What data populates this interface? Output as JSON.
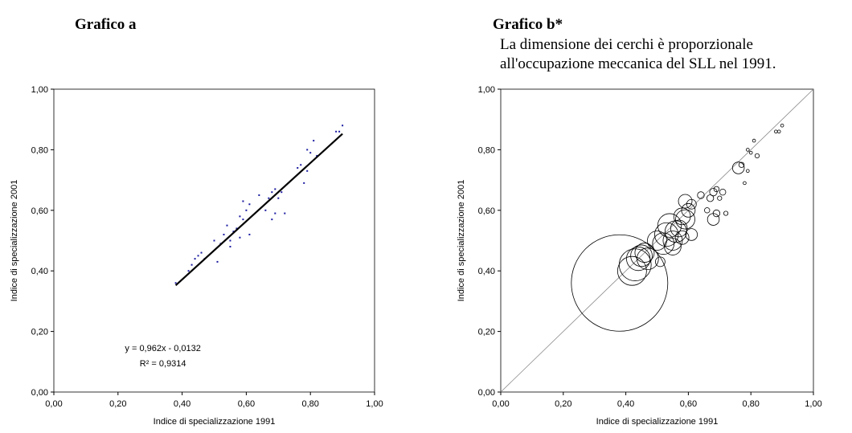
{
  "chart_data": [
    {
      "type": "scatter",
      "title": "Grafico a",
      "xlabel": "Indice di specializzazione 1991",
      "ylabel": "Indice di specializzazione 2001",
      "xlim": [
        0,
        1
      ],
      "ylim": [
        0,
        1
      ],
      "xticks": [
        {
          "value": 0,
          "label": "0,00"
        },
        {
          "value": 0.2,
          "label": "0,20"
        },
        {
          "value": 0.4,
          "label": "0,40"
        },
        {
          "value": 0.6,
          "label": "0,60"
        },
        {
          "value": 0.8,
          "label": "0,80"
        },
        {
          "value": 1,
          "label": "1,00"
        }
      ],
      "yticks": [
        {
          "value": 0,
          "label": "0,00"
        },
        {
          "value": 0.2,
          "label": "0,20"
        },
        {
          "value": 0.4,
          "label": "0,40"
        },
        {
          "value": 0.6,
          "label": "0,60"
        },
        {
          "value": 0.8,
          "label": "0,80"
        },
        {
          "value": 1,
          "label": "1,00"
        }
      ],
      "color": "#1a1aa0",
      "x": [
        0.38,
        0.42,
        0.43,
        0.44,
        0.45,
        0.46,
        0.47,
        0.5,
        0.51,
        0.52,
        0.53,
        0.54,
        0.55,
        0.55,
        0.56,
        0.57,
        0.58,
        0.58,
        0.59,
        0.59,
        0.6,
        0.61,
        0.61,
        0.64,
        0.66,
        0.67,
        0.68,
        0.68,
        0.69,
        0.69,
        0.7,
        0.71,
        0.72,
        0.76,
        0.77,
        0.78,
        0.79,
        0.79,
        0.8,
        0.81,
        0.82,
        0.88,
        0.89,
        0.9
      ],
      "y": [
        0.36,
        0.4,
        0.42,
        0.44,
        0.45,
        0.46,
        0.44,
        0.5,
        0.43,
        0.49,
        0.52,
        0.55,
        0.5,
        0.48,
        0.53,
        0.54,
        0.51,
        0.58,
        0.57,
        0.63,
        0.6,
        0.52,
        0.62,
        0.65,
        0.6,
        0.64,
        0.66,
        0.57,
        0.59,
        0.67,
        0.64,
        0.66,
        0.59,
        0.74,
        0.75,
        0.69,
        0.73,
        0.8,
        0.79,
        0.83,
        0.78,
        0.86,
        0.86,
        0.88
      ],
      "trendline": {
        "slope": 0.962,
        "intercept": -0.0132,
        "xrange": [
          0.38,
          0.9
        ],
        "equation": "y = 0,962x - 0,0132",
        "r2": 0.9314,
        "r2_label": "R² = 0,9314"
      }
    },
    {
      "type": "bubble",
      "title": "Grafico b*",
      "subtitle": [
        "La dimensione dei cerchi è proporzionale",
        "all'occupazione meccanica del SLL nel 1991."
      ],
      "xlabel": "Indice di specializzazione 1991",
      "ylabel": "Indice di specializzazione 2001",
      "xlim": [
        0,
        1
      ],
      "ylim": [
        0,
        1
      ],
      "xticks": [
        {
          "value": 0,
          "label": "0,00"
        },
        {
          "value": 0.2,
          "label": "0,20"
        },
        {
          "value": 0.4,
          "label": "0,40"
        },
        {
          "value": 0.6,
          "label": "0,60"
        },
        {
          "value": 0.8,
          "label": "0,80"
        },
        {
          "value": 1,
          "label": "1,00"
        }
      ],
      "yticks": [
        {
          "value": 0,
          "label": "0,00"
        },
        {
          "value": 0.2,
          "label": "0,20"
        },
        {
          "value": 0.4,
          "label": "0,40"
        },
        {
          "value": 0.6,
          "label": "0,60"
        },
        {
          "value": 0.8,
          "label": "0,80"
        },
        {
          "value": 1,
          "label": "1,00"
        }
      ],
      "diagonal": true,
      "x": [
        0.38,
        0.42,
        0.43,
        0.44,
        0.45,
        0.46,
        0.47,
        0.5,
        0.51,
        0.52,
        0.53,
        0.54,
        0.55,
        0.55,
        0.56,
        0.57,
        0.58,
        0.58,
        0.59,
        0.59,
        0.6,
        0.61,
        0.61,
        0.64,
        0.66,
        0.67,
        0.68,
        0.68,
        0.69,
        0.69,
        0.7,
        0.71,
        0.72,
        0.76,
        0.77,
        0.78,
        0.79,
        0.79,
        0.8,
        0.81,
        0.82,
        0.88,
        0.89,
        0.9
      ],
      "y": [
        0.36,
        0.4,
        0.42,
        0.44,
        0.45,
        0.46,
        0.44,
        0.5,
        0.43,
        0.49,
        0.52,
        0.55,
        0.5,
        0.48,
        0.53,
        0.54,
        0.51,
        0.58,
        0.57,
        0.63,
        0.6,
        0.52,
        0.62,
        0.65,
        0.6,
        0.64,
        0.66,
        0.57,
        0.59,
        0.67,
        0.64,
        0.66,
        0.59,
        0.74,
        0.75,
        0.69,
        0.73,
        0.8,
        0.79,
        0.83,
        0.78,
        0.86,
        0.86,
        0.88
      ],
      "sizes": [
        100,
        9,
        11,
        6,
        5,
        4,
        5,
        4,
        1,
        5,
        6,
        6,
        4,
        3,
        5,
        3,
        2,
        3,
        4,
        2,
        2,
        1.5,
        1,
        0.5,
        0.3,
        0.5,
        0.6,
        1.5,
        0.5,
        0.3,
        0.2,
        0.4,
        0.2,
        1.5,
        0.3,
        0.1,
        0.1,
        0.1,
        0.1,
        0.1,
        0.2,
        0.1,
        0.1,
        0.1
      ]
    }
  ]
}
